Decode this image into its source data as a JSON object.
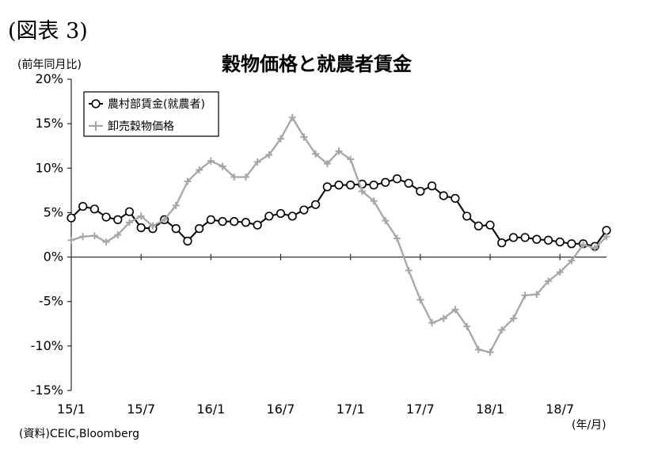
{
  "figure_label": "(図表 3)",
  "source_note": "(資料)CEIC,Bloomberg",
  "colors": {
    "wage_series": "#000000",
    "grain_series": "#a6a6a6",
    "axis": "#000000",
    "background": "#ffffff"
  },
  "chart_data": {
    "type": "line",
    "title": "穀物価格と就農者賃金",
    "ylabel": "(前年同月比)",
    "xlabel": "(年/月)",
    "ylim": [
      -15,
      20
    ],
    "yticks": [
      {
        "value": 20,
        "label": "20%"
      },
      {
        "value": 15,
        "label": "15%"
      },
      {
        "value": 10,
        "label": "10%"
      },
      {
        "value": 5,
        "label": "5%"
      },
      {
        "value": 0,
        "label": "0%"
      },
      {
        "value": -5,
        "label": "-5%"
      },
      {
        "value": -10,
        "label": "-10%"
      },
      {
        "value": -15,
        "label": "-15%"
      }
    ],
    "xticks": [
      {
        "index": 0,
        "label": "15/1"
      },
      {
        "index": 6,
        "label": "15/7"
      },
      {
        "index": 12,
        "label": "16/1"
      },
      {
        "index": 18,
        "label": "16/7"
      },
      {
        "index": 24,
        "label": "17/1"
      },
      {
        "index": 30,
        "label": "17/7"
      },
      {
        "index": 36,
        "label": "18/1"
      },
      {
        "index": 42,
        "label": "18/7"
      }
    ],
    "grid": false,
    "legend_position": "top-left",
    "series": [
      {
        "name": "農村部賃金(就農者)",
        "marker": "circle",
        "color": "#000000",
        "values": [
          4.4,
          5.7,
          5.4,
          4.5,
          4.2,
          5.1,
          3.3,
          3.2,
          4.2,
          3.2,
          1.8,
          3.2,
          4.2,
          4.0,
          4.0,
          3.9,
          3.6,
          4.6,
          4.9,
          4.6,
          5.3,
          5.9,
          7.9,
          8.1,
          8.1,
          8.2,
          8.1,
          8.4,
          8.8,
          8.3,
          7.4,
          8.0,
          6.9,
          6.6,
          4.6,
          3.5,
          3.6,
          1.6,
          2.2,
          2.2,
          2.0,
          1.9,
          1.7,
          1.5,
          1.5,
          1.2,
          3.0
        ]
      },
      {
        "name": "卸売穀物価格",
        "marker": "plus",
        "color": "#a6a6a6",
        "values": [
          1.9,
          2.3,
          2.4,
          1.7,
          2.5,
          3.9,
          4.6,
          3.5,
          4.2,
          5.8,
          8.5,
          9.8,
          10.8,
          10.2,
          9.0,
          9.0,
          10.7,
          11.5,
          13.3,
          15.7,
          13.5,
          11.6,
          10.5,
          11.9,
          11.0,
          7.4,
          6.3,
          4.1,
          2.1,
          -1.5,
          -4.8,
          -7.4,
          -6.9,
          -5.9,
          -7.8,
          -10.4,
          -10.7,
          -8.2,
          -6.9,
          -4.3,
          -4.2,
          -2.7,
          -1.7,
          -0.4,
          1.4,
          1.0,
          2.3
        ]
      }
    ]
  }
}
